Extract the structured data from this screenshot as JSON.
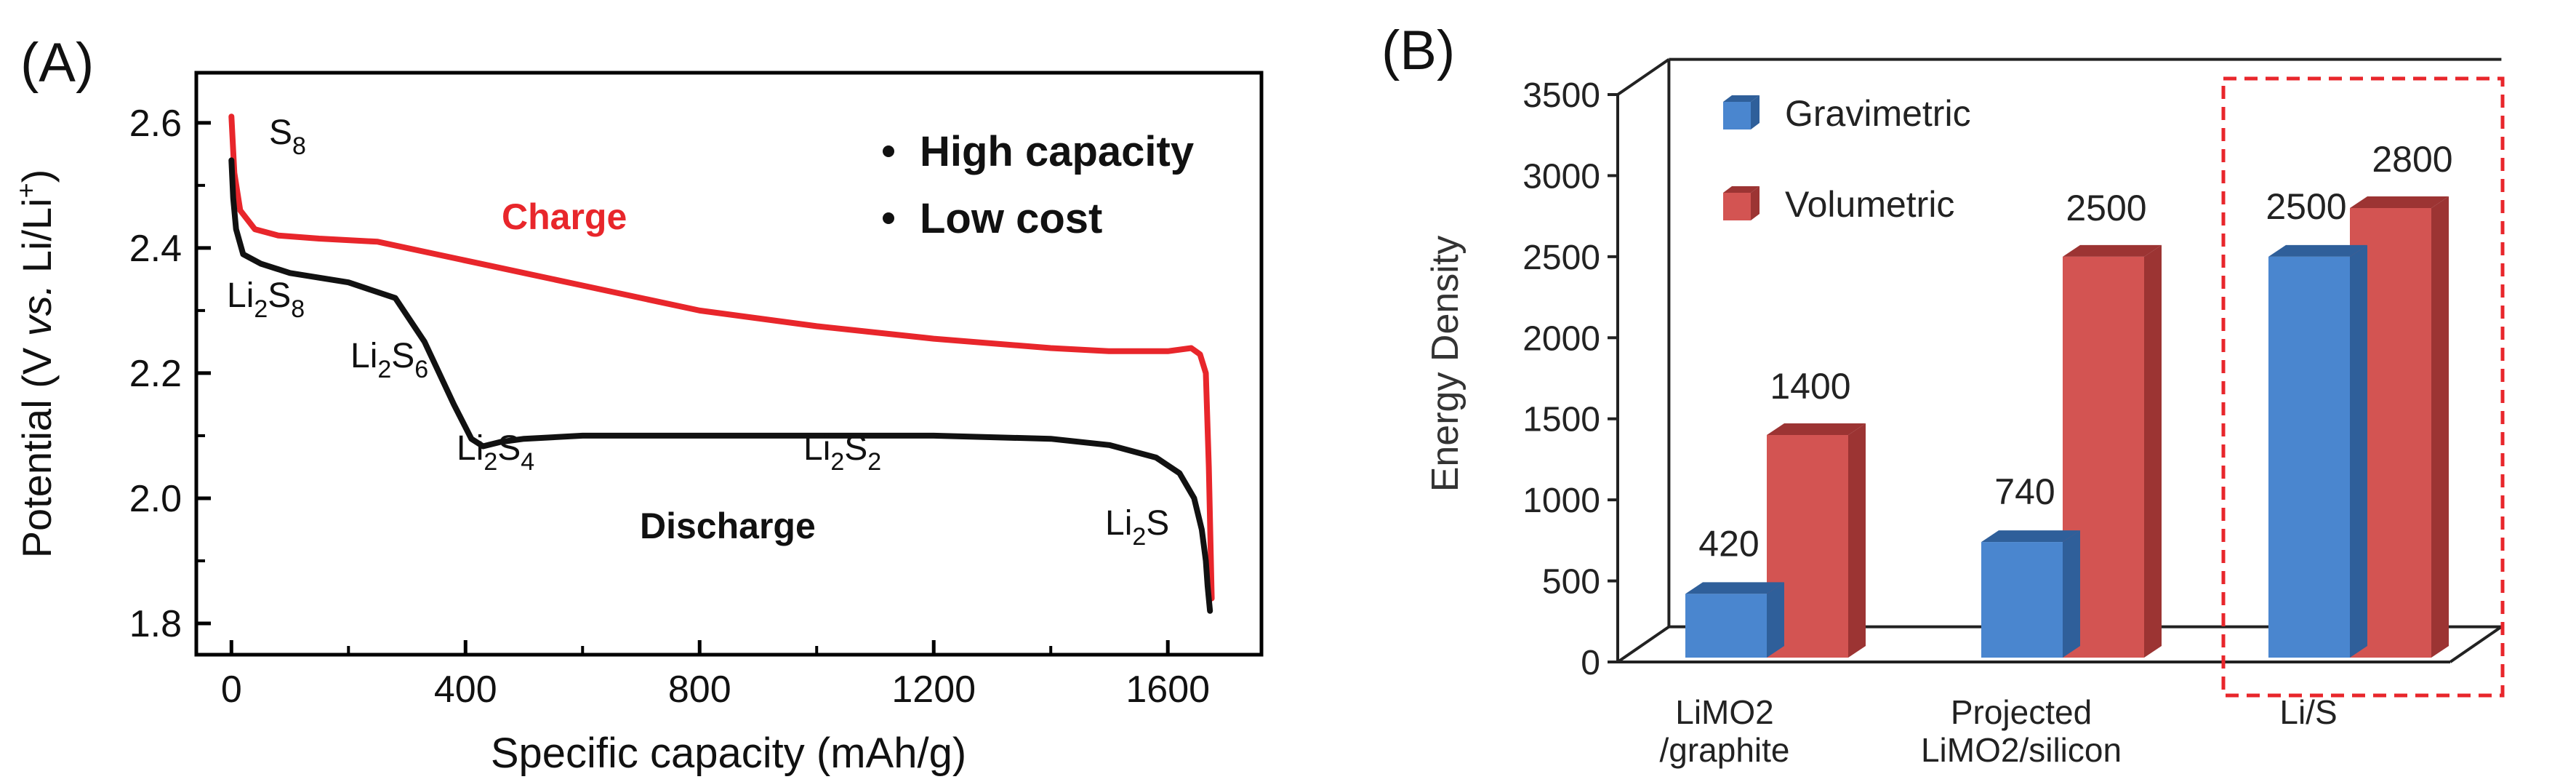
{
  "panel_a": {
    "label": "(A)",
    "bullets": [
      "High capacity",
      "Low cost"
    ],
    "curve_labels": {
      "charge": "Charge",
      "discharge": "Discharge"
    },
    "species": [
      {
        "base": "S",
        "sub": "8",
        "tail": ""
      },
      {
        "base": "Li",
        "sub": "2",
        "tail": "S",
        "sub2": "8"
      },
      {
        "base": "Li",
        "sub": "2",
        "tail": "S",
        "sub2": "6"
      },
      {
        "base": "Li",
        "sub": "2",
        "tail": "S",
        "sub2": "4"
      },
      {
        "base": "Li",
        "sub": "2",
        "tail": "S",
        "sub2": "2"
      },
      {
        "base": "Li",
        "sub": "2",
        "tail": "S",
        "sub2": ""
      }
    ],
    "colors": {
      "charge": "#e8262b",
      "discharge": "#111111"
    }
  },
  "panel_b": {
    "label": "(B)",
    "colors": {
      "gravimetric": "#4a86cf",
      "volumetric": "#d35452",
      "highlight_box": "#e8262b"
    }
  },
  "chart_data": [
    {
      "type": "line",
      "ylabel": "Potential (V vs. Li/Li+)",
      "xlabel": "Specific capacity (mAh/g)",
      "xlim": [
        -60,
        1760
      ],
      "ylim": [
        1.75,
        2.68
      ],
      "xticks": [
        0,
        400,
        800,
        1200,
        1600
      ],
      "yticks": [
        1.8,
        2.0,
        2.2,
        2.4,
        2.6
      ],
      "grid": false,
      "series": [
        {
          "name": "Charge",
          "x": [
            0,
            5,
            15,
            40,
            80,
            150,
            250,
            350,
            450,
            600,
            800,
            1000,
            1200,
            1400,
            1500,
            1600,
            1640,
            1655,
            1665,
            1670,
            1675
          ],
          "y": [
            2.61,
            2.52,
            2.46,
            2.43,
            2.42,
            2.415,
            2.41,
            2.39,
            2.37,
            2.34,
            2.3,
            2.275,
            2.255,
            2.24,
            2.235,
            2.235,
            2.24,
            2.23,
            2.2,
            2.05,
            1.84
          ]
        },
        {
          "name": "Discharge",
          "x": [
            0,
            3,
            8,
            20,
            50,
            100,
            200,
            280,
            330,
            380,
            410,
            430,
            460,
            500,
            600,
            800,
            1000,
            1200,
            1400,
            1500,
            1580,
            1620,
            1645,
            1658,
            1665,
            1668,
            1672
          ],
          "y": [
            2.54,
            2.48,
            2.43,
            2.39,
            2.375,
            2.36,
            2.345,
            2.32,
            2.25,
            2.15,
            2.095,
            2.083,
            2.09,
            2.095,
            2.1,
            2.1,
            2.1,
            2.1,
            2.095,
            2.085,
            2.065,
            2.04,
            2.0,
            1.95,
            1.9,
            1.86,
            1.82
          ]
        }
      ]
    },
    {
      "type": "bar",
      "ylabel": "Energy Density",
      "categories": [
        "LiMO2 /graphite",
        "Projected LiMO2/silicon",
        "Li/S"
      ],
      "category_lines": [
        [
          "LiMO2",
          "/graphite"
        ],
        [
          "Projected",
          "LiMO2/silicon"
        ],
        [
          "Li/S"
        ]
      ],
      "ylim": [
        0,
        3500
      ],
      "yticks": [
        0,
        500,
        1000,
        1500,
        2000,
        2500,
        3000,
        3500
      ],
      "legend": "top-left",
      "grid": false,
      "series": [
        {
          "name": "Gravimetric",
          "values": [
            420,
            740,
            2500
          ],
          "labels": [
            "420",
            "740",
            "2500"
          ]
        },
        {
          "name": "Volumetric",
          "values": [
            1400,
            2500,
            2800
          ],
          "labels": [
            "1400",
            "2500",
            "2800"
          ]
        }
      ]
    }
  ]
}
